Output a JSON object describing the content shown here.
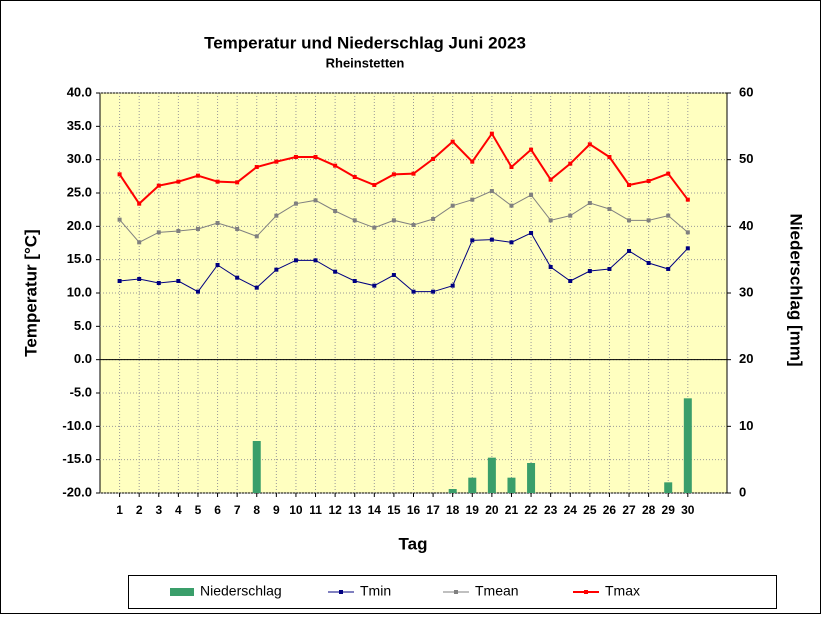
{
  "chart_data": {
    "type": "combo",
    "title": "Temperatur und Niederschlag  Juni 2023",
    "subtitle": "Rheinstetten",
    "x_label": "Tag",
    "y_label": "Temperatur [°C]",
    "y2_label": "Niederschlag [mm]",
    "x": [
      1,
      2,
      3,
      4,
      5,
      6,
      7,
      8,
      9,
      10,
      11,
      12,
      13,
      14,
      15,
      16,
      17,
      18,
      19,
      20,
      21,
      22,
      23,
      24,
      25,
      26,
      27,
      28,
      29,
      30
    ],
    "xlim": [
      0,
      32
    ],
    "xticks": [
      1,
      2,
      3,
      4,
      5,
      6,
      7,
      8,
      9,
      10,
      11,
      12,
      13,
      14,
      15,
      16,
      17,
      18,
      19,
      20,
      21,
      22,
      23,
      24,
      25,
      26,
      27,
      28,
      29,
      30
    ],
    "ylim": [
      -20,
      40
    ],
    "yticks": [
      {
        "value": -20,
        "label": "-20.0"
      },
      {
        "value": -15,
        "label": "-15.0"
      },
      {
        "value": -10,
        "label": "-10.0"
      },
      {
        "value": -5,
        "label": "-5.0"
      },
      {
        "value": 0,
        "label": "0.0"
      },
      {
        "value": 5,
        "label": "5.0"
      },
      {
        "value": 10,
        "label": "10.0"
      },
      {
        "value": 15,
        "label": "15.0"
      },
      {
        "value": 20,
        "label": "20.0"
      },
      {
        "value": 25,
        "label": "25.0"
      },
      {
        "value": 30,
        "label": "30.0"
      },
      {
        "value": 35,
        "label": "35.0"
      },
      {
        "value": 40,
        "label": "40.0"
      }
    ],
    "y2lim": [
      0,
      60
    ],
    "y2ticks": [
      0,
      10,
      20,
      30,
      40,
      50,
      60
    ],
    "grid": true,
    "legend": "bottom",
    "series": [
      {
        "name": "Niederschlag",
        "type": "bar",
        "axis": "y2",
        "color": "#3a9e6a",
        "values": [
          0,
          0,
          0,
          0,
          0,
          0,
          0,
          7.8,
          0,
          0,
          0,
          0,
          0,
          0,
          0,
          0,
          0,
          0.6,
          2.3,
          5.3,
          2.3,
          4.5,
          0,
          0,
          0,
          0,
          0,
          0,
          1.6,
          14.2
        ]
      },
      {
        "name": "Tmin",
        "type": "line",
        "color": "#000080",
        "values": [
          11.8,
          12.1,
          11.5,
          11.8,
          10.2,
          14.2,
          12.3,
          10.8,
          13.5,
          14.9,
          14.9,
          13.2,
          11.8,
          11.1,
          12.7,
          10.2,
          10.2,
          11.1,
          17.9,
          18.0,
          17.6,
          19.0,
          13.9,
          11.8,
          13.3,
          13.6,
          16.3,
          14.5,
          13.6,
          16.7
        ]
      },
      {
        "name": "Tmean",
        "type": "line",
        "color": "#808080",
        "values": [
          21.0,
          17.6,
          19.1,
          19.3,
          19.6,
          20.5,
          19.6,
          18.5,
          21.6,
          23.4,
          23.9,
          22.3,
          20.9,
          19.8,
          20.9,
          20.2,
          21.1,
          23.1,
          24.0,
          25.3,
          23.1,
          24.7,
          20.9,
          21.6,
          23.5,
          22.6,
          20.9,
          20.9,
          21.6,
          19.1
        ]
      },
      {
        "name": "Tmax",
        "type": "line",
        "color": "#ff0000",
        "values": [
          27.8,
          23.4,
          26.1,
          26.7,
          27.6,
          26.7,
          26.6,
          28.9,
          29.7,
          30.4,
          30.4,
          29.1,
          27.4,
          26.2,
          27.8,
          27.9,
          30.1,
          32.7,
          29.7,
          33.9,
          28.9,
          31.5,
          27.0,
          29.4,
          32.3,
          30.4,
          26.2,
          26.8,
          27.9,
          24.0
        ]
      }
    ]
  }
}
